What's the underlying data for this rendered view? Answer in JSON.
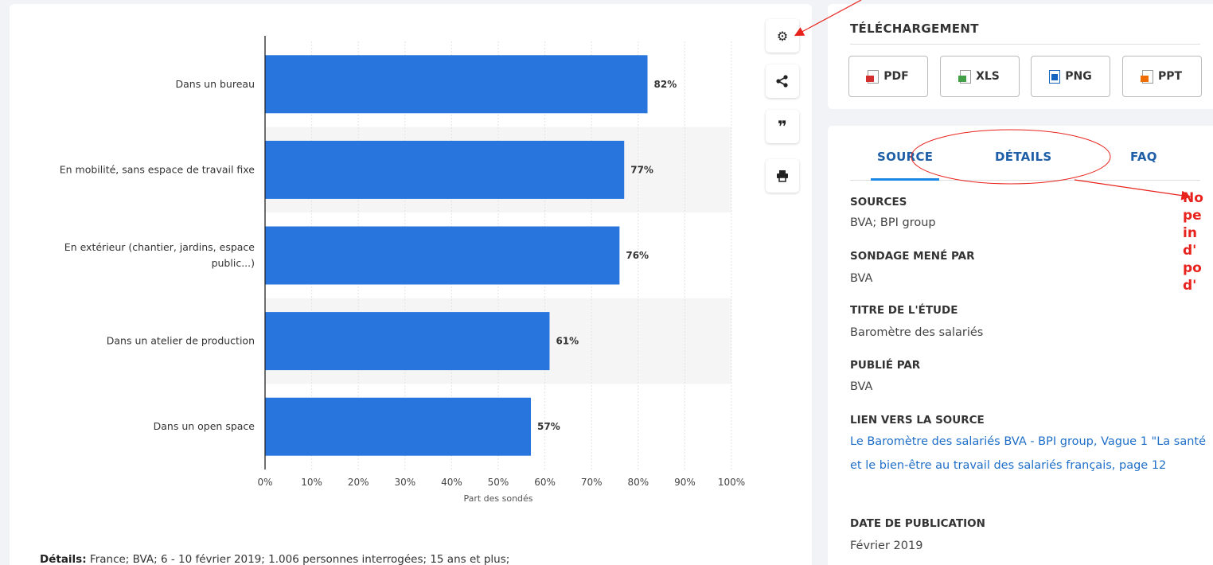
{
  "chart_data": {
    "type": "bar",
    "orientation": "horizontal",
    "categories": [
      "Dans un bureau",
      "En mobilité, sans espace de travail fixe",
      "En extérieur (chantier, jardins, espace public...)",
      "Dans un atelier de production",
      "Dans un open space"
    ],
    "category_lines": [
      [
        "Dans un bureau"
      ],
      [
        "En mobilité, sans espace de travail fixe"
      ],
      [
        "En extérieur (chantier, jardins, espace",
        "public...)"
      ],
      [
        "Dans un atelier de production"
      ],
      [
        "Dans un open space"
      ]
    ],
    "values": [
      82,
      77,
      76,
      61,
      57
    ],
    "value_labels": [
      "82%",
      "77%",
      "76%",
      "61%",
      "57%"
    ],
    "xlim": [
      0,
      100
    ],
    "xticks": [
      "0%",
      "10%",
      "20%",
      "30%",
      "40%",
      "50%",
      "60%",
      "70%",
      "80%",
      "90%",
      "100%"
    ],
    "xlabel": "Part des sondés",
    "ylabel": "",
    "title": "",
    "bar_color": "#2876dd",
    "grid": true
  },
  "details": {
    "label": "Détails:",
    "text": " France; BVA; 6 - 10 février 2019; 1.006 personnes interrogées; 15 ans et plus;"
  },
  "toolbar": {
    "buttons": [
      {
        "name": "settings-button",
        "icon": "gear-icon",
        "glyph": "⚙"
      },
      {
        "name": "share-button",
        "icon": "share-icon",
        "glyph": "<"
      },
      {
        "name": "cite-button",
        "icon": "quote-icon",
        "glyph": "❞"
      },
      {
        "name": "print-button",
        "icon": "print-icon",
        "glyph": "⎙"
      }
    ]
  },
  "download": {
    "title": "TÉLÉCHARGEMENT",
    "buttons": [
      {
        "label": "PDF",
        "icon": "pdf-file-icon",
        "color": "#d32f2f"
      },
      {
        "label": "XLS",
        "icon": "xls-file-icon",
        "color": "#43a047"
      },
      {
        "label": "PNG",
        "icon": "png-file-icon",
        "color": "#1565c0"
      },
      {
        "label": "PPT",
        "icon": "ppt-file-icon",
        "color": "#ef6c00"
      }
    ]
  },
  "tabs": [
    "SOURCE",
    "DÉTAILS",
    "FAQ"
  ],
  "source": {
    "sources_label": "SOURCES",
    "sources_value": "BVA; BPI group",
    "surveyor_label": "SONDAGE MENÉ PAR",
    "surveyor_value": "BVA",
    "study_label": "TITRE DE L'ÉTUDE",
    "study_value": "Baromètre des salariés",
    "publisher_label": "PUBLIÉ PAR",
    "publisher_value": "BVA",
    "link_label": "LIEN VERS LA SOURCE",
    "link_value": "Le Baromètre des salariés BVA - BPI group, Vague 1 \"La santé et le bien-être au travail des salariés français, page 12",
    "date_label": "DATE DE PUBLICATION",
    "date_value": "Février 2019"
  },
  "annotation": {
    "text": "No\npe\nin\nd'\npo\nd'",
    "color": "#e8231d"
  }
}
